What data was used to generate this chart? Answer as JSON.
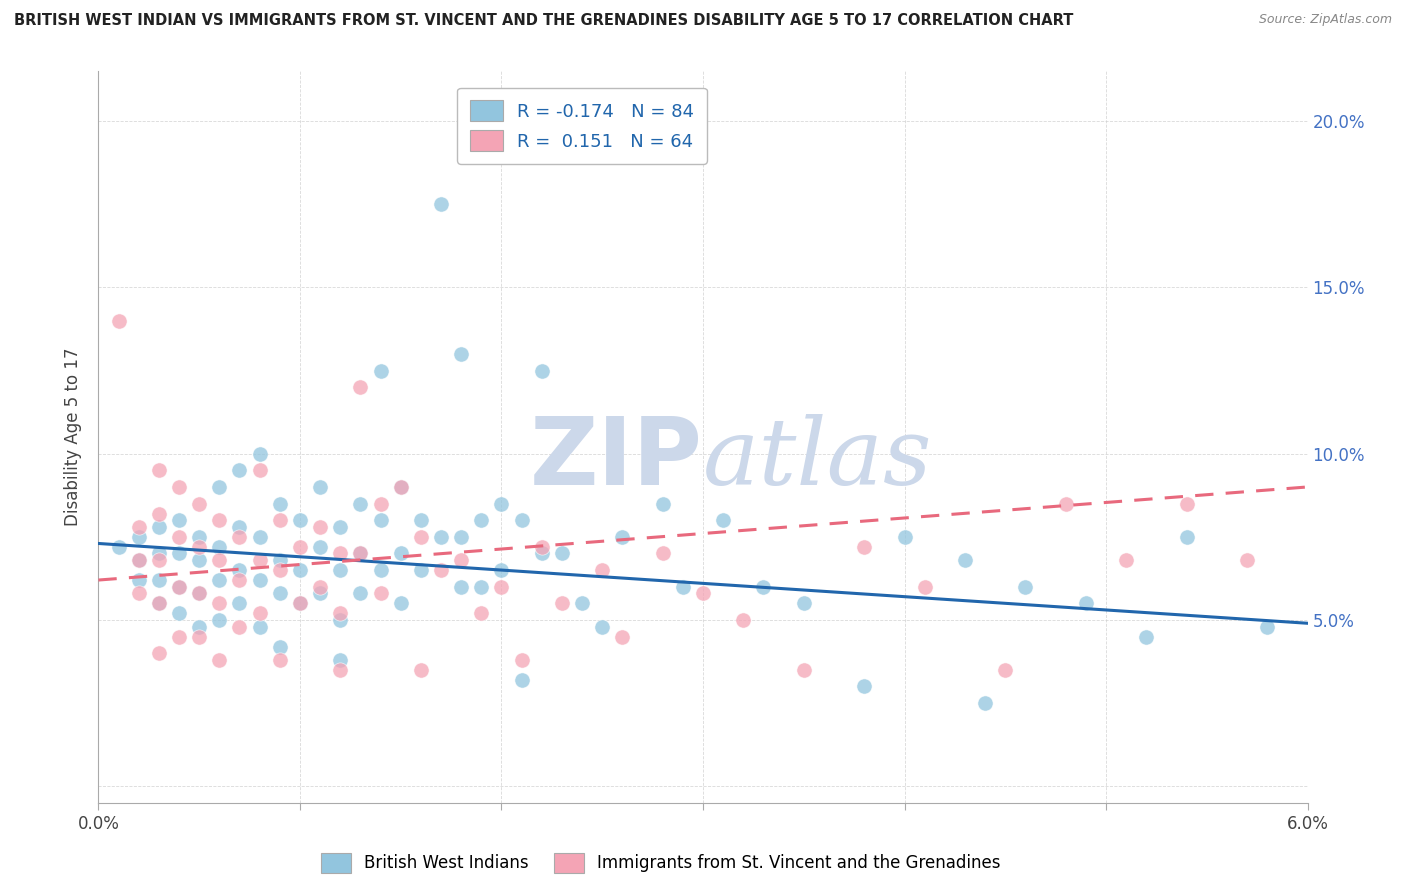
{
  "title": "BRITISH WEST INDIAN VS IMMIGRANTS FROM ST. VINCENT AND THE GRENADINES DISABILITY AGE 5 TO 17 CORRELATION CHART",
  "source": "Source: ZipAtlas.com",
  "ylabel": "Disability Age 5 to 17",
  "xlim": [
    0.0,
    0.06
  ],
  "ylim": [
    -0.005,
    0.215
  ],
  "ytick_vals": [
    0.0,
    0.05,
    0.1,
    0.15,
    0.2
  ],
  "ytick_labels_right": [
    "",
    "5.0%",
    "10.0%",
    "15.0%",
    "20.0%"
  ],
  "xtick_vals": [
    0.0,
    0.01,
    0.02,
    0.03,
    0.04,
    0.05,
    0.06
  ],
  "xtick_labels": [
    "0.0%",
    "",
    "",
    "",
    "",
    "",
    "6.0%"
  ],
  "legend_r1": "R = -0.174",
  "legend_n1": "N = 84",
  "legend_r2": "R =  0.151",
  "legend_n2": "N = 64",
  "blue_color": "#92c5de",
  "pink_color": "#f4a4b5",
  "blue_line_color": "#2166ac",
  "pink_line_color": "#e8697d",
  "watermark_color": "#ccd8ea",
  "blue_scatter": [
    [
      0.001,
      0.072
    ],
    [
      0.002,
      0.075
    ],
    [
      0.002,
      0.068
    ],
    [
      0.002,
      0.062
    ],
    [
      0.003,
      0.078
    ],
    [
      0.003,
      0.07
    ],
    [
      0.003,
      0.062
    ],
    [
      0.003,
      0.055
    ],
    [
      0.004,
      0.08
    ],
    [
      0.004,
      0.07
    ],
    [
      0.004,
      0.06
    ],
    [
      0.004,
      0.052
    ],
    [
      0.005,
      0.075
    ],
    [
      0.005,
      0.068
    ],
    [
      0.005,
      0.058
    ],
    [
      0.005,
      0.048
    ],
    [
      0.006,
      0.09
    ],
    [
      0.006,
      0.072
    ],
    [
      0.006,
      0.062
    ],
    [
      0.006,
      0.05
    ],
    [
      0.007,
      0.095
    ],
    [
      0.007,
      0.078
    ],
    [
      0.007,
      0.065
    ],
    [
      0.007,
      0.055
    ],
    [
      0.008,
      0.1
    ],
    [
      0.008,
      0.075
    ],
    [
      0.008,
      0.062
    ],
    [
      0.008,
      0.048
    ],
    [
      0.009,
      0.085
    ],
    [
      0.009,
      0.068
    ],
    [
      0.009,
      0.058
    ],
    [
      0.009,
      0.042
    ],
    [
      0.01,
      0.08
    ],
    [
      0.01,
      0.065
    ],
    [
      0.01,
      0.055
    ],
    [
      0.011,
      0.09
    ],
    [
      0.011,
      0.072
    ],
    [
      0.011,
      0.058
    ],
    [
      0.012,
      0.078
    ],
    [
      0.012,
      0.065
    ],
    [
      0.012,
      0.05
    ],
    [
      0.012,
      0.038
    ],
    [
      0.013,
      0.085
    ],
    [
      0.013,
      0.07
    ],
    [
      0.013,
      0.058
    ],
    [
      0.014,
      0.125
    ],
    [
      0.014,
      0.08
    ],
    [
      0.014,
      0.065
    ],
    [
      0.015,
      0.09
    ],
    [
      0.015,
      0.07
    ],
    [
      0.015,
      0.055
    ],
    [
      0.016,
      0.08
    ],
    [
      0.016,
      0.065
    ],
    [
      0.017,
      0.175
    ],
    [
      0.017,
      0.075
    ],
    [
      0.018,
      0.13
    ],
    [
      0.018,
      0.075
    ],
    [
      0.018,
      0.06
    ],
    [
      0.019,
      0.08
    ],
    [
      0.019,
      0.06
    ],
    [
      0.02,
      0.085
    ],
    [
      0.02,
      0.065
    ],
    [
      0.021,
      0.08
    ],
    [
      0.021,
      0.032
    ],
    [
      0.022,
      0.125
    ],
    [
      0.022,
      0.07
    ],
    [
      0.023,
      0.07
    ],
    [
      0.024,
      0.055
    ],
    [
      0.025,
      0.048
    ],
    [
      0.026,
      0.075
    ],
    [
      0.028,
      0.085
    ],
    [
      0.029,
      0.06
    ],
    [
      0.031,
      0.08
    ],
    [
      0.033,
      0.06
    ],
    [
      0.035,
      0.055
    ],
    [
      0.038,
      0.03
    ],
    [
      0.04,
      0.075
    ],
    [
      0.043,
      0.068
    ],
    [
      0.044,
      0.025
    ],
    [
      0.046,
      0.06
    ],
    [
      0.049,
      0.055
    ],
    [
      0.052,
      0.045
    ],
    [
      0.054,
      0.075
    ],
    [
      0.058,
      0.048
    ]
  ],
  "pink_scatter": [
    [
      0.001,
      0.14
    ],
    [
      0.002,
      0.078
    ],
    [
      0.002,
      0.068
    ],
    [
      0.002,
      0.058
    ],
    [
      0.003,
      0.095
    ],
    [
      0.003,
      0.082
    ],
    [
      0.003,
      0.068
    ],
    [
      0.003,
      0.055
    ],
    [
      0.003,
      0.04
    ],
    [
      0.004,
      0.09
    ],
    [
      0.004,
      0.075
    ],
    [
      0.004,
      0.06
    ],
    [
      0.004,
      0.045
    ],
    [
      0.005,
      0.085
    ],
    [
      0.005,
      0.072
    ],
    [
      0.005,
      0.058
    ],
    [
      0.005,
      0.045
    ],
    [
      0.006,
      0.08
    ],
    [
      0.006,
      0.068
    ],
    [
      0.006,
      0.055
    ],
    [
      0.006,
      0.038
    ],
    [
      0.007,
      0.075
    ],
    [
      0.007,
      0.062
    ],
    [
      0.007,
      0.048
    ],
    [
      0.008,
      0.095
    ],
    [
      0.008,
      0.068
    ],
    [
      0.008,
      0.052
    ],
    [
      0.009,
      0.08
    ],
    [
      0.009,
      0.065
    ],
    [
      0.009,
      0.038
    ],
    [
      0.01,
      0.072
    ],
    [
      0.01,
      0.055
    ],
    [
      0.011,
      0.078
    ],
    [
      0.011,
      0.06
    ],
    [
      0.012,
      0.07
    ],
    [
      0.012,
      0.052
    ],
    [
      0.012,
      0.035
    ],
    [
      0.013,
      0.12
    ],
    [
      0.013,
      0.07
    ],
    [
      0.014,
      0.085
    ],
    [
      0.014,
      0.058
    ],
    [
      0.015,
      0.09
    ],
    [
      0.016,
      0.075
    ],
    [
      0.016,
      0.035
    ],
    [
      0.017,
      0.065
    ],
    [
      0.018,
      0.068
    ],
    [
      0.019,
      0.052
    ],
    [
      0.02,
      0.06
    ],
    [
      0.021,
      0.038
    ],
    [
      0.022,
      0.072
    ],
    [
      0.023,
      0.055
    ],
    [
      0.025,
      0.065
    ],
    [
      0.026,
      0.045
    ],
    [
      0.028,
      0.07
    ],
    [
      0.03,
      0.058
    ],
    [
      0.032,
      0.05
    ],
    [
      0.035,
      0.035
    ],
    [
      0.038,
      0.072
    ],
    [
      0.041,
      0.06
    ],
    [
      0.045,
      0.035
    ],
    [
      0.048,
      0.085
    ],
    [
      0.051,
      0.068
    ],
    [
      0.054,
      0.085
    ],
    [
      0.057,
      0.068
    ]
  ],
  "blue_trendline": [
    [
      0.0,
      0.073
    ],
    [
      0.06,
      0.049
    ]
  ],
  "pink_trendline": [
    [
      0.0,
      0.062
    ],
    [
      0.06,
      0.09
    ]
  ]
}
